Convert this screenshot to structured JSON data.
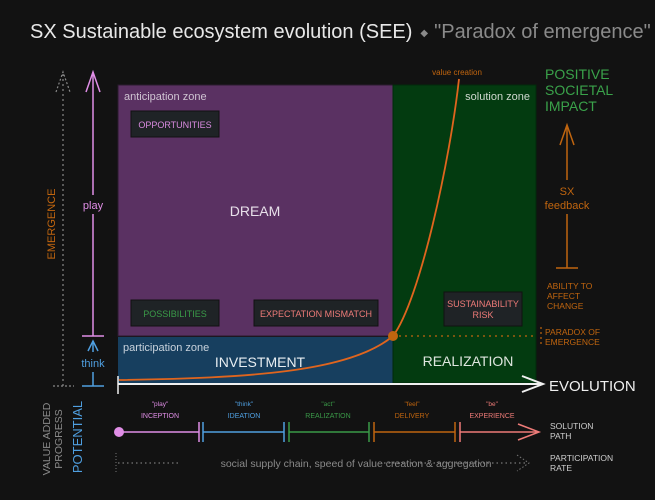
{
  "title": {
    "main": "SX Sustainable ecosystem evolution (SEE)",
    "separator": "◆",
    "subtitle": "\"Paradox of emergence\""
  },
  "zones": {
    "anticipation": {
      "label": "anticipation zone",
      "center": "DREAM",
      "color": "#5a3162"
    },
    "participation": {
      "label": "participation zone",
      "center": "INVESTMENT",
      "color": "#173f5f"
    },
    "solution": {
      "label": "solution zone",
      "center": "REALIZATION",
      "color": "#033b10"
    }
  },
  "boxes": {
    "opportunities": "OPPORTUNITIES",
    "possibilities": "POSSIBILITIES",
    "expectation_mismatch": "EXPECTATION MISMATCH",
    "sustainability_risk": [
      "SUSTAINABILITY",
      "RISK"
    ]
  },
  "curve": {
    "label": "value creation",
    "color": "#e0651e"
  },
  "left_axis": {
    "emergence": "EMERGENCE",
    "play": "play",
    "think": "think"
  },
  "x_axis": {
    "label": "EVOLUTION"
  },
  "right": {
    "impact": [
      "POSITIVE",
      "SOCIETAL",
      "IMPACT"
    ],
    "feedback": [
      "SX",
      "feedback"
    ],
    "ability": [
      "ABILITY TO",
      "AFFECT",
      "CHANGE"
    ],
    "paradox": [
      "PARADOX OF",
      "EMERGENCE"
    ]
  },
  "bottom": {
    "value_added": [
      "VALUE ADDED",
      "PROGRESS"
    ],
    "potential": "POTENTIAL",
    "stages": [
      {
        "verb": "\"play\"",
        "name": "INCEPTION",
        "color": "#e08ee6"
      },
      {
        "verb": "\"think\"",
        "name": "IDEATION",
        "color": "#4f9fe0"
      },
      {
        "verb": "\"act\"",
        "name": "REALIZATION",
        "color": "#3a9a48"
      },
      {
        "verb": "\"feel\"",
        "name": "DELIVERY",
        "color": "#c0650f"
      },
      {
        "verb": "\"be\"",
        "name": "EXPERIENCE",
        "color": "#ee7b78"
      }
    ],
    "solution_path": [
      "SOLUTION",
      "PATH"
    ],
    "participation_text": "social supply chain, speed of value creation & aggregation",
    "participation_rate": [
      "PARTICIPATION",
      "RATE"
    ]
  }
}
